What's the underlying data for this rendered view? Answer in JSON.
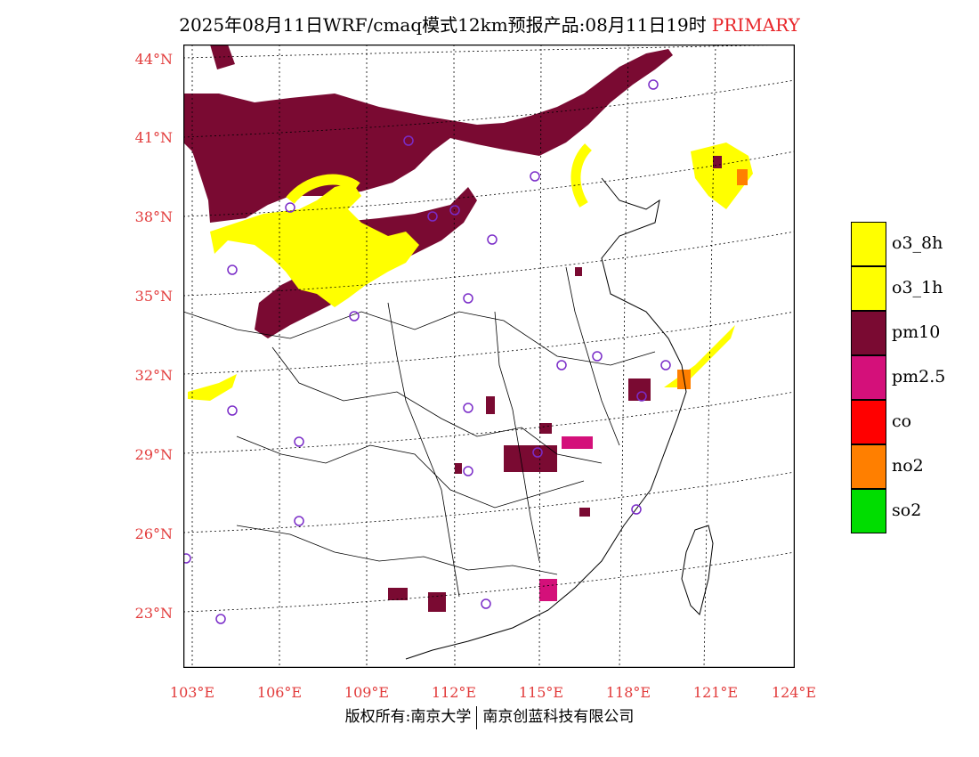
{
  "title": {
    "text": "2025年08月11日WRF/cmaq模式12km预报产品:08月11日19时",
    "tag": "PRIMARY"
  },
  "latitude_labels": [
    "44°N",
    "41°N",
    "38°N",
    "35°N",
    "32°N",
    "29°N",
    "26°N",
    "23°N"
  ],
  "longitude_labels": [
    "103°E",
    "106°E",
    "109°E",
    "112°E",
    "115°E",
    "118°E",
    "121°E",
    "124°E"
  ],
  "legend": [
    {
      "label": "o3_8h",
      "color": "#ffff00"
    },
    {
      "label": "o3_1h",
      "color": "#ffff00"
    },
    {
      "label": "pm10",
      "color": "#7a0a32"
    },
    {
      "label": "pm2.5",
      "color": "#d4107a"
    },
    {
      "label": "co",
      "color": "#ff0000"
    },
    {
      "label": "no2",
      "color": "#ff7f00"
    },
    {
      "label": "so2",
      "color": "#00dd00"
    }
  ],
  "footer": {
    "left": "版权所有:南京大学",
    "right": "南京创蓝科技有限公司"
  }
}
